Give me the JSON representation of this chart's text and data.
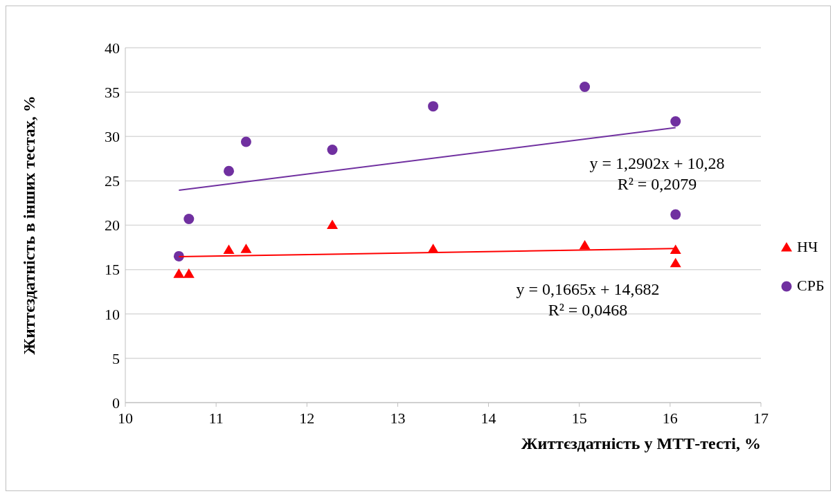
{
  "chart_data": {
    "type": "scatter",
    "xlabel": "Життєздатність у МТТ-тесті, %",
    "ylabel": "Життєздатність в інших тестах, %",
    "xlim": [
      10,
      17
    ],
    "xticks": [
      10,
      11,
      12,
      13,
      14,
      15,
      16,
      17
    ],
    "ylim": [
      0,
      40
    ],
    "yticks": [
      0,
      5,
      10,
      15,
      20,
      25,
      30,
      35,
      40
    ],
    "grid": "y",
    "legend": "right",
    "series": [
      {
        "name": "НЧ",
        "color": "#ff0000",
        "marker": "triangle",
        "x": [
          10.59,
          10.7,
          11.14,
          11.33,
          12.28,
          13.39,
          15.06,
          16.06,
          16.06
        ],
        "values": [
          14.5,
          14.5,
          17.2,
          17.3,
          20.0,
          17.3,
          17.7,
          17.2,
          15.7
        ]
      },
      {
        "name": "СРБ",
        "color": "#7030a0",
        "marker": "circle",
        "x": [
          10.59,
          10.7,
          11.14,
          11.33,
          12.28,
          13.39,
          15.06,
          16.06,
          16.06
        ],
        "values": [
          16.5,
          20.7,
          26.1,
          29.4,
          28.5,
          33.4,
          35.6,
          31.7,
          21.2
        ]
      },
      {
        "type": "line",
        "color": "#ff0000",
        "marker": "none",
        "x": [
          10.59,
          16.06
        ],
        "values": [
          16.45,
          17.36
        ]
      },
      {
        "type": "line",
        "color": "#7030a0",
        "marker": "none",
        "x": [
          10.59,
          16.06
        ],
        "values": [
          23.94,
          31.0
        ]
      }
    ],
    "annotations": [
      "y = 1,2902x + 10,28\nR² = 0,2079",
      "y = 0,1665x + 14,682\nR² = 0,0468"
    ]
  }
}
